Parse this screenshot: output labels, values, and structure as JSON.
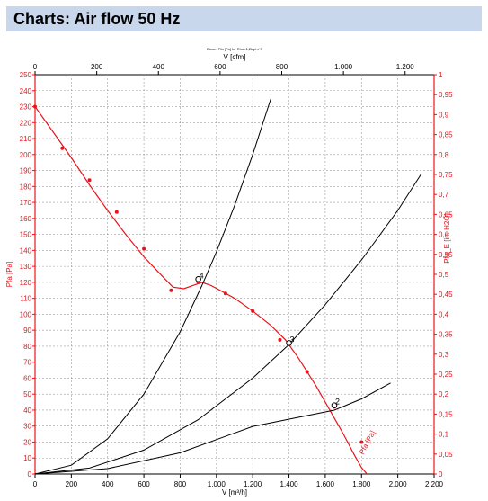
{
  "header": {
    "title": "Charts: Air flow 50 Hz"
  },
  "chart_data": {
    "type": "line",
    "title": "Dicom Pfa [Pa] for Rho=1,2kg/m^3",
    "xlabel": "V [m³/h]",
    "xlabel_top": "V [cfm]",
    "ylabel_left": "Pfa [Pa]",
    "ylabel_right": "Pfa_E [in. H2O]",
    "xlim": [
      0,
      2200
    ],
    "ylim": [
      0,
      250
    ],
    "xlim_top": [
      0,
      1294
    ],
    "ylim_right": [
      0,
      1.0
    ],
    "x_ticks": [
      "0",
      "200",
      "400",
      "600",
      "800",
      "1.000",
      "1.200",
      "1.400",
      "1.600",
      "1.800",
      "2.000",
      "2.200"
    ],
    "y_ticks": [
      "0",
      "10",
      "20",
      "30",
      "40",
      "50",
      "60",
      "70",
      "80",
      "90",
      "100",
      "110",
      "120",
      "130",
      "140",
      "150",
      "160",
      "170",
      "180",
      "190",
      "200",
      "210",
      "220",
      "230",
      "240",
      "250"
    ],
    "x_top_ticks": [
      "0",
      "200",
      "400",
      "600",
      "800",
      "1.000",
      "1.200"
    ],
    "y_right_ticks": [
      "0",
      "0,05",
      "0,1",
      "0,15",
      "0,2",
      "0,25",
      "0,3",
      "0,35",
      "0,4",
      "0,45",
      "0,5",
      "0,55",
      "0,6",
      "0,65",
      "0,7",
      "0,75",
      "0,8",
      "0,85",
      "0,9",
      "0,95",
      "1"
    ],
    "grid": true,
    "series": [
      {
        "name": "Pfa",
        "color": "#e8141c",
        "x": [
          0,
          100,
          200,
          300,
          400,
          500,
          600,
          700,
          760,
          820,
          870,
          920,
          970,
          1020,
          1100,
          1200,
          1300,
          1380,
          1450,
          1500,
          1550,
          1600,
          1650,
          1700,
          1760,
          1800,
          1830
        ],
        "y": [
          230,
          214,
          198,
          181,
          165,
          150,
          136,
          124,
          117,
          116,
          118,
          120,
          118,
          115,
          110,
          102,
          93,
          84,
          73,
          64,
          55,
          45,
          35,
          25,
          12,
          4,
          0
        ]
      },
      {
        "name": "",
        "color": "#000000",
        "x": [
          0,
          200,
          400,
          600,
          800,
          920,
          1000,
          1100,
          1200,
          1300
        ],
        "y": [
          0,
          5.5,
          22,
          50,
          89,
          118,
          139,
          168,
          200,
          235
        ]
      },
      {
        "name": "",
        "color": "#000000",
        "x": [
          0,
          300,
          600,
          900,
          1200,
          1400,
          1600,
          1800,
          2000,
          2130
        ],
        "y": [
          0,
          3.7,
          15,
          34,
          60,
          81,
          106,
          134,
          165,
          188
        ]
      },
      {
        "name": "",
        "color": "#000000",
        "x": [
          0,
          400,
          800,
          1200,
          1650,
          1800,
          1960
        ],
        "y": [
          0,
          3.4,
          13.3,
          29.8,
          40,
          47,
          57
        ]
      }
    ],
    "measured_points": {
      "color": "#e8141c",
      "x": [
        0,
        150,
        300,
        450,
        600,
        750,
        900,
        1050,
        1200,
        1350,
        1500,
        1650,
        1800
      ],
      "y": [
        230,
        204,
        184,
        164,
        141,
        115,
        120,
        113,
        102,
        84,
        64,
        42,
        20
      ]
    },
    "operating_points": [
      {
        "label": "4",
        "x": 900,
        "y": 122
      },
      {
        "label": "3",
        "x": 1400,
        "y": 82
      },
      {
        "label": "2",
        "x": 1650,
        "y": 43
      }
    ],
    "annotations": [
      {
        "text": "Pfa [Pa]",
        "x": 1810,
        "y": 12
      }
    ]
  }
}
